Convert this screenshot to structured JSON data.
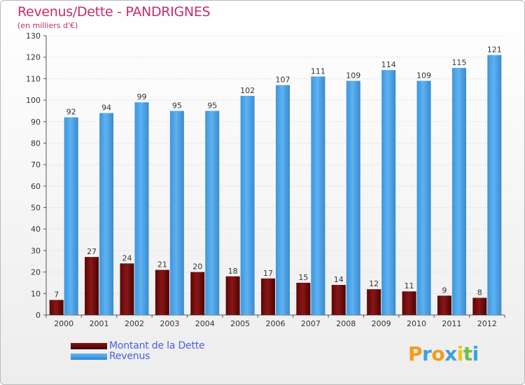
{
  "header": {
    "title": "Revenus/Dette - PANDRIGNES",
    "subtitle": "(en milliers d'€)"
  },
  "legend": {
    "items": [
      {
        "label": "Montant de la Dette",
        "color": "#7a0c0c"
      },
      {
        "label": "Revenus",
        "color": "#4aa3e8"
      }
    ]
  },
  "logo": {
    "letters": [
      {
        "ch": "P",
        "color": "#f59c1a"
      },
      {
        "ch": "r",
        "color": "#3fa0dc"
      },
      {
        "ch": "o",
        "color": "#f59c1a"
      },
      {
        "ch": "x",
        "color": "#3fa0dc"
      },
      {
        "ch": "i",
        "color": "#f5c31a"
      },
      {
        "ch": "t",
        "color": "#6cc04a"
      },
      {
        "ch": "i",
        "color": "#3fa0dc"
      }
    ]
  },
  "chart_data": {
    "type": "bar",
    "title": "Revenus/Dette - PANDRIGNES",
    "subtitle": "(en milliers d'€)",
    "categories": [
      "2000",
      "2001",
      "2002",
      "2003",
      "2004",
      "2005",
      "2006",
      "2007",
      "2008",
      "2009",
      "2010",
      "2011",
      "2012"
    ],
    "series": [
      {
        "name": "Montant de la Dette",
        "color": "#7a0c0c",
        "values": [
          7,
          27,
          24,
          21,
          20,
          18,
          17,
          15,
          14,
          12,
          11,
          9,
          8
        ]
      },
      {
        "name": "Revenus",
        "color": "#4aa3e8",
        "values": [
          92,
          94,
          99,
          95,
          95,
          102,
          107,
          111,
          109,
          114,
          109,
          115,
          121
        ]
      }
    ],
    "ylim": [
      0,
      130
    ],
    "yticks": [
      0,
      10,
      20,
      30,
      40,
      50,
      60,
      70,
      80,
      90,
      100,
      110,
      120,
      130
    ],
    "grid": true,
    "legend_position": "bottom-left"
  }
}
